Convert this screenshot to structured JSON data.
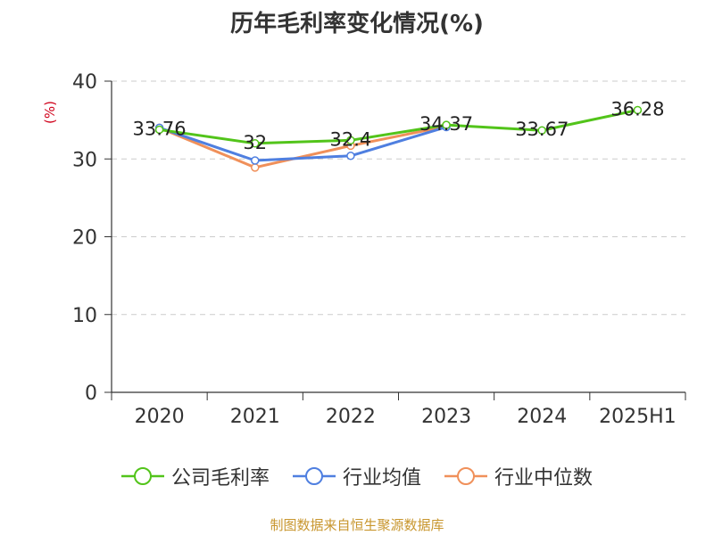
{
  "chart_data": {
    "type": "line",
    "title": "历年毛利率变化情况(%)",
    "unit_label": "(%)",
    "categories": [
      "2020",
      "2021",
      "2022",
      "2023",
      "2024",
      "2025H1"
    ],
    "ylim": [
      0,
      40
    ],
    "yticks": [
      0,
      10,
      20,
      30,
      40
    ],
    "grid": true,
    "legend_position": "bottom",
    "series": [
      {
        "name": "公司毛利率",
        "color": "#52c41a",
        "values": [
          33.76,
          32,
          32.4,
          34.37,
          33.67,
          36.28
        ],
        "labels": [
          "33.76",
          "32",
          "32.4",
          "34.37",
          "33.67",
          "36.28"
        ]
      },
      {
        "name": "行业均值",
        "color": "#4f7fe0",
        "values": [
          34.0,
          29.8,
          30.4,
          34.1,
          null,
          null
        ]
      },
      {
        "name": "行业中位数",
        "color": "#f0905a",
        "values": [
          34.0,
          28.9,
          31.7,
          34.2,
          null,
          null
        ]
      }
    ]
  },
  "source": "制图数据来自恒生聚源数据库"
}
